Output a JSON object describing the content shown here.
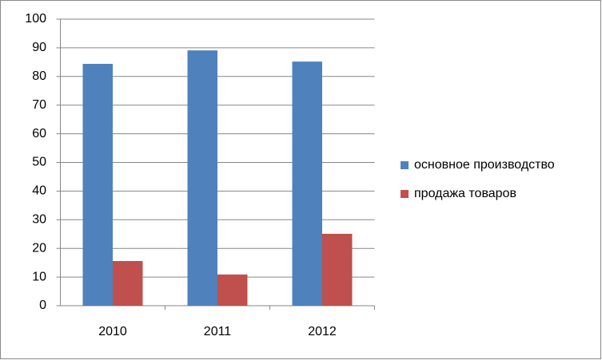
{
  "chart_data": {
    "type": "bar",
    "categories": [
      "2010",
      "2011",
      "2012"
    ],
    "series": [
      {
        "name": "основное производство",
        "color": "#4f81bd",
        "values": [
          84.4,
          89.1,
          85.2
        ]
      },
      {
        "name": "продажа товаров",
        "color": "#c0504d",
        "values": [
          15.6,
          10.9,
          25.1
        ]
      }
    ],
    "ylim": [
      0,
      100
    ],
    "yticks": [
      0,
      10,
      20,
      30,
      40,
      50,
      60,
      70,
      80,
      90,
      100
    ],
    "grid": true,
    "legend": "right"
  }
}
